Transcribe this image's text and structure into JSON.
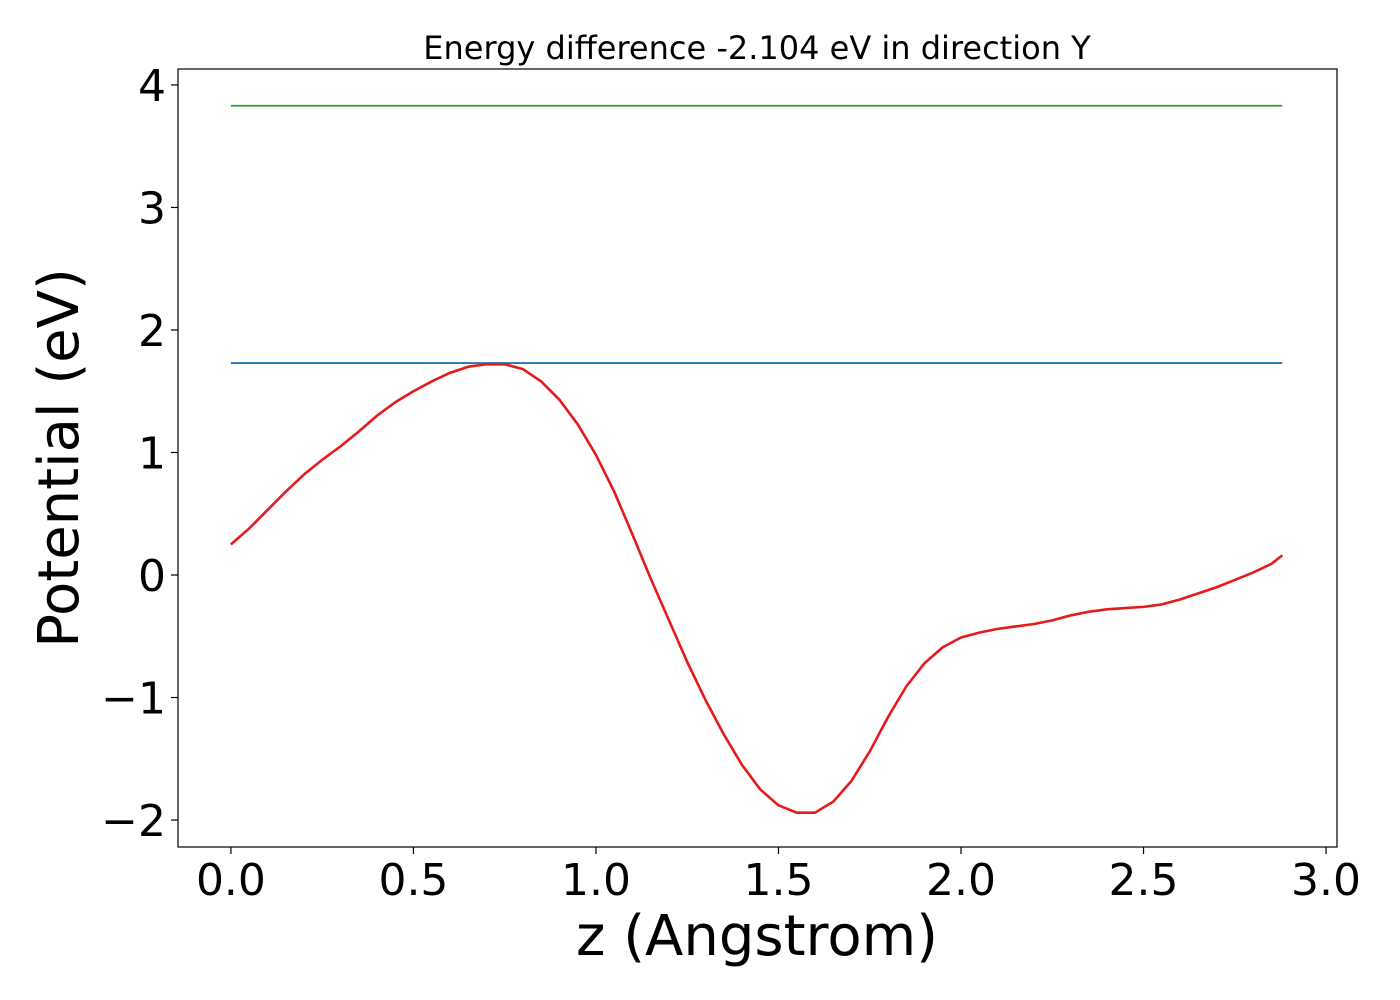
{
  "chart_data": {
    "type": "line",
    "title": "Energy difference -2.104 eV in direction Y",
    "xlabel": "z (Angstrom)",
    "ylabel": "Potential (eV)",
    "xlim": [
      -0.145,
      3.03
    ],
    "ylim": [
      -2.22,
      4.13
    ],
    "xticks": [
      0.0,
      0.5,
      1.0,
      1.5,
      2.0,
      2.5,
      3.0
    ],
    "xtick_labels": [
      "0.0",
      "0.5",
      "1.0",
      "1.5",
      "2.0",
      "2.5",
      "3.0"
    ],
    "yticks": [
      -2,
      -1,
      0,
      1,
      2,
      3,
      4
    ],
    "ytick_labels": [
      "−2",
      "−1",
      "0",
      "1",
      "2",
      "3",
      "4"
    ],
    "grid": false,
    "series": [
      {
        "color": "#2ca02c",
        "x": [
          0.0,
          2.88
        ],
        "y": [
          3.83,
          3.83
        ]
      },
      {
        "color": "#1f77b4",
        "x": [
          0.0,
          2.88
        ],
        "y": [
          1.73,
          1.73
        ]
      },
      {
        "color": "#e41a1c",
        "x": [
          0.0,
          0.05,
          0.1,
          0.15,
          0.2,
          0.25,
          0.3,
          0.35,
          0.4,
          0.45,
          0.5,
          0.55,
          0.6,
          0.65,
          0.7,
          0.75,
          0.8,
          0.85,
          0.9,
          0.95,
          1.0,
          1.05,
          1.1,
          1.15,
          1.2,
          1.25,
          1.3,
          1.35,
          1.4,
          1.45,
          1.5,
          1.55,
          1.6,
          1.65,
          1.7,
          1.75,
          1.8,
          1.85,
          1.9,
          1.95,
          2.0,
          2.05,
          2.1,
          2.15,
          2.2,
          2.25,
          2.3,
          2.35,
          2.4,
          2.45,
          2.5,
          2.55,
          2.6,
          2.65,
          2.7,
          2.75,
          2.8,
          2.85,
          2.88
        ],
        "y": [
          0.25,
          0.38,
          0.53,
          0.68,
          0.82,
          0.94,
          1.05,
          1.17,
          1.3,
          1.41,
          1.5,
          1.58,
          1.65,
          1.7,
          1.72,
          1.72,
          1.68,
          1.58,
          1.43,
          1.23,
          0.98,
          0.68,
          0.33,
          -0.03,
          -0.37,
          -0.71,
          -1.02,
          -1.3,
          -1.55,
          -1.75,
          -1.88,
          -1.94,
          -1.94,
          -1.85,
          -1.68,
          -1.44,
          -1.16,
          -0.91,
          -0.72,
          -0.59,
          -0.51,
          -0.47,
          -0.44,
          -0.42,
          -0.4,
          -0.37,
          -0.33,
          -0.3,
          -0.28,
          -0.27,
          -0.26,
          -0.24,
          -0.2,
          -0.15,
          -0.1,
          -0.04,
          0.02,
          0.09,
          0.16
        ]
      }
    ]
  }
}
